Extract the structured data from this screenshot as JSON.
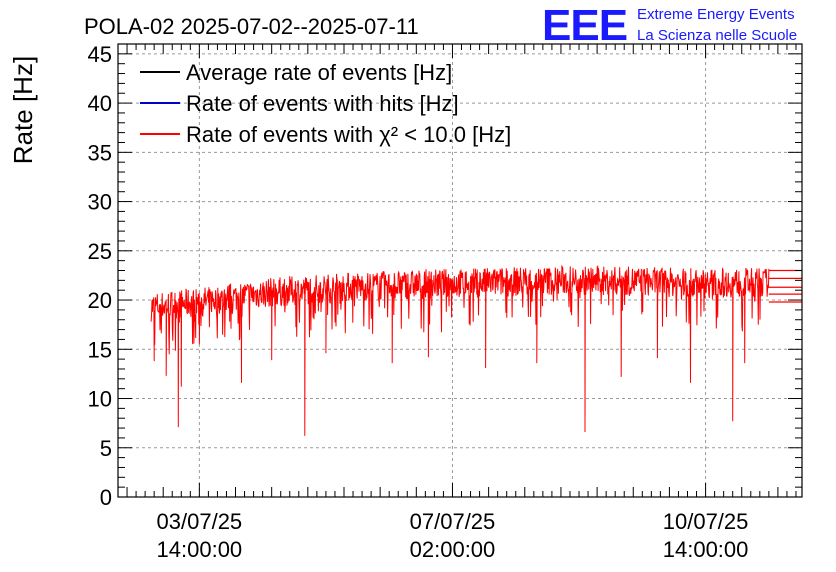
{
  "header": {
    "title": "POLA-02 2025-07-02--2025-07-11"
  },
  "logo": {
    "mark": "EEE",
    "line1": "Extreme Energy Events",
    "line2": "La Scienza nelle Scuole",
    "color": "#1a1aff"
  },
  "chart_data": {
    "type": "line",
    "title": "POLA-02 2025-07-02--2025-07-11",
    "xlabel": "",
    "ylabel": "Rate [Hz]",
    "ylim": [
      0,
      46
    ],
    "y_ticks": [
      0,
      5,
      10,
      15,
      20,
      25,
      30,
      35,
      40,
      45
    ],
    "x_range": [
      "2025-07-02 11:00",
      "2025-07-11 22:00"
    ],
    "x_ticks": [
      {
        "date": "03/07/25",
        "time": "14:00:00",
        "t": "2025-07-03 14:00"
      },
      {
        "date": "07/07/25",
        "time": "02:00:00",
        "t": "2025-07-07 02:00"
      },
      {
        "date": "10/07/25",
        "time": "14:00:00",
        "t": "2025-07-10 14:00"
      }
    ],
    "grid": true,
    "legend_position": "top-left",
    "series": [
      {
        "name": "Average rate of events [Hz]",
        "color": "#000000"
      },
      {
        "name": "Rate of events with hits [Hz]",
        "color": "#0000cc"
      },
      {
        "name": "Rate of events with χ² < 10.0 [Hz]",
        "color": "#ff0000",
        "trend": [
          {
            "t": "2025-07-02 22:00",
            "y": 19.3
          },
          {
            "t": "2025-07-03 14:00",
            "y": 19.8
          },
          {
            "t": "2025-07-04 14:00",
            "y": 20.8
          },
          {
            "t": "2025-07-05 14:00",
            "y": 21.3
          },
          {
            "t": "2025-07-06 14:00",
            "y": 21.6
          },
          {
            "t": "2025-07-07 14:00",
            "y": 21.8
          },
          {
            "t": "2025-07-08 14:00",
            "y": 22.0
          },
          {
            "t": "2025-07-09 14:00",
            "y": 21.9
          },
          {
            "t": "2025-07-10 14:00",
            "y": 21.7
          },
          {
            "t": "2025-07-11 11:00",
            "y": 21.8
          }
        ],
        "dips": [
          {
            "t": "2025-07-02 23:00",
            "y": 13.8
          },
          {
            "t": "2025-07-03 03:00",
            "y": 12.3
          },
          {
            "t": "2025-07-03 07:00",
            "y": 7.1
          },
          {
            "t": "2025-07-03 08:00",
            "y": 11.2
          },
          {
            "t": "2025-07-03 14:00",
            "y": 15.5
          },
          {
            "t": "2025-07-04 04:00",
            "y": 11.6
          },
          {
            "t": "2025-07-04 14:00",
            "y": 13.9
          },
          {
            "t": "2025-07-05 01:00",
            "y": 6.2
          },
          {
            "t": "2025-07-05 08:00",
            "y": 14.6
          },
          {
            "t": "2025-07-06 06:00",
            "y": 13.6
          },
          {
            "t": "2025-07-06 18:00",
            "y": 14.2
          },
          {
            "t": "2025-07-07 13:00",
            "y": 13.1
          },
          {
            "t": "2025-07-08 06:00",
            "y": 13.6
          },
          {
            "t": "2025-07-08 22:00",
            "y": 6.6
          },
          {
            "t": "2025-07-09 10:00",
            "y": 12.2
          },
          {
            "t": "2025-07-09 22:00",
            "y": 14.1
          },
          {
            "t": "2025-07-10 09:00",
            "y": 11.6
          },
          {
            "t": "2025-07-10 23:00",
            "y": 7.7
          },
          {
            "t": "2025-07-11 03:00",
            "y": 13.6
          }
        ],
        "noise_band_hz": 1.5,
        "end_plateau_lines": [
          23.0,
          22.2,
          21.3,
          20.6,
          19.8
        ]
      }
    ]
  }
}
